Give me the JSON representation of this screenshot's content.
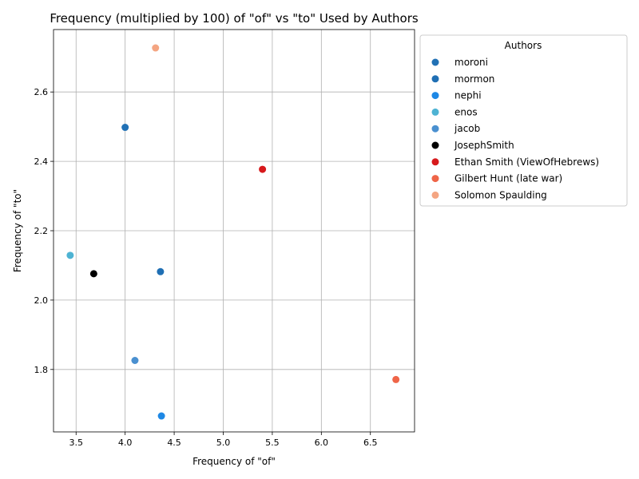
{
  "chart_data": {
    "type": "scatter",
    "title": "Frequency (multiplied by 100) of \"of\" vs \"to\" Used by Authors",
    "xlabel": "Frequency of \"of\"",
    "ylabel": "Frequency of \"to\"",
    "xlim": [
      3.27,
      6.95
    ],
    "ylim": [
      1.62,
      2.78
    ],
    "xticks": [
      3.5,
      4.0,
      4.5,
      5.0,
      5.5,
      6.0,
      6.5
    ],
    "yticks": [
      1.8,
      2.0,
      2.2,
      2.4,
      2.6
    ],
    "grid": true,
    "legend": {
      "title": "Authors",
      "placement": "outside-right"
    },
    "series": [
      {
        "name": "moroni",
        "color": "#2171b5",
        "points": [
          [
            4.0,
            2.498
          ]
        ]
      },
      {
        "name": "mormon",
        "color": "#1f6fb4",
        "points": [
          [
            4.36,
            2.082
          ]
        ]
      },
      {
        "name": "nephi",
        "color": "#1e88e5",
        "points": [
          [
            4.37,
            1.666
          ]
        ]
      },
      {
        "name": "enos",
        "color": "#4eb3d3",
        "points": [
          [
            3.44,
            2.129
          ]
        ]
      },
      {
        "name": "jacob",
        "color": "#4a90d0",
        "points": [
          [
            4.1,
            1.826
          ]
        ]
      },
      {
        "name": "JosephSmith",
        "color": "#000000",
        "points": [
          [
            3.68,
            2.076
          ]
        ]
      },
      {
        "name": "Ethan Smith (ViewOfHebrews)",
        "color": "#d7191c",
        "points": [
          [
            5.4,
            2.377
          ]
        ]
      },
      {
        "name": "Gilbert Hunt (late war)",
        "color": "#ef6548",
        "points": [
          [
            6.76,
            1.771
          ]
        ]
      },
      {
        "name": "Solomon Spaulding",
        "color": "#f4a582",
        "points": [
          [
            4.31,
            2.727
          ]
        ]
      }
    ]
  }
}
